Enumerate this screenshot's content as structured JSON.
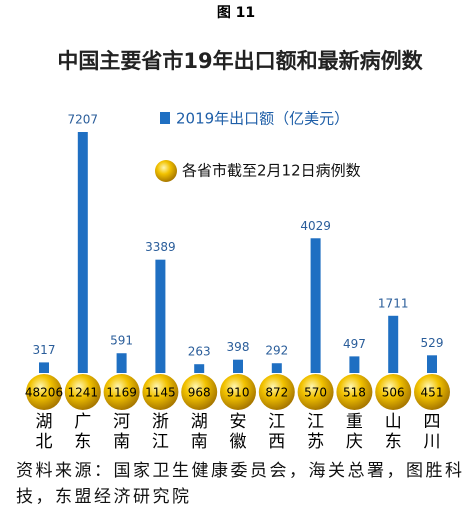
{
  "figure_label": "图 11",
  "chart_data": {
    "type": "bar",
    "title": "中国主要省市19年出口额和最新病例数",
    "categories": [
      "湖北",
      "广东",
      "河南",
      "浙江",
      "湖南",
      "安徽",
      "江西",
      "江苏",
      "重庆",
      "山东",
      "四川"
    ],
    "series": [
      {
        "name": "2019年出口额（亿美元）",
        "color": "#1f6fc2",
        "values": [
          317,
          7207,
          591,
          3389,
          263,
          398,
          292,
          4029,
          497,
          1711,
          529
        ]
      },
      {
        "name": "各省市截至2月12日病例数",
        "color": "#e8b400",
        "type": "bubble",
        "values": [
          48206,
          1241,
          1169,
          1145,
          968,
          910,
          872,
          570,
          518,
          506,
          451
        ]
      }
    ],
    "source": "资料来源：国家卫生健康委员会，海关总署，图胜科技，东盟经济研究院"
  }
}
